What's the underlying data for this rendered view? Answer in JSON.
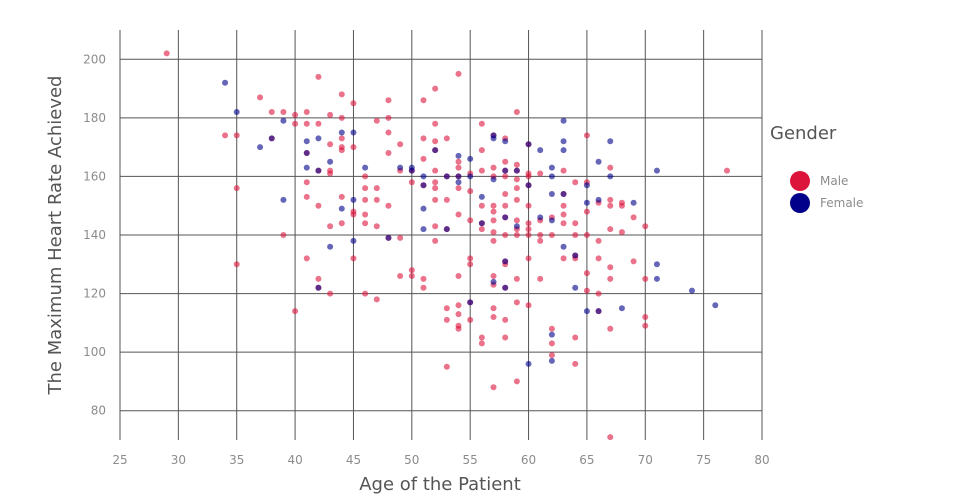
{
  "chart_data": {
    "type": "scatter",
    "xlabel": "Age of the Patient",
    "ylabel": "The Maximum Heart Rate Achieved",
    "xlim": [
      25,
      80
    ],
    "ylim": [
      70,
      210
    ],
    "x_ticks": [
      25,
      30,
      35,
      40,
      45,
      50,
      55,
      60,
      65,
      70,
      75,
      80
    ],
    "y_ticks": [
      80,
      100,
      120,
      140,
      160,
      180,
      200
    ],
    "grid": true,
    "legend": {
      "title": "Gender",
      "position": "right"
    },
    "series": [
      {
        "name": "Male",
        "color": "#DC143C",
        "points": [
          [
            29,
            202
          ],
          [
            34,
            174
          ],
          [
            35,
            174
          ],
          [
            35,
            156
          ],
          [
            35,
            130
          ],
          [
            37,
            187
          ],
          [
            38,
            182
          ],
          [
            38,
            173
          ],
          [
            39,
            182
          ],
          [
            39,
            140
          ],
          [
            40,
            181
          ],
          [
            40,
            178
          ],
          [
            40,
            114
          ],
          [
            41,
            182
          ],
          [
            41,
            178
          ],
          [
            41,
            168
          ],
          [
            41,
            158
          ],
          [
            41,
            153
          ],
          [
            41,
            132
          ],
          [
            42,
            194
          ],
          [
            42,
            178
          ],
          [
            42,
            162
          ],
          [
            42,
            150
          ],
          [
            42,
            125
          ],
          [
            42,
            122
          ],
          [
            43,
            181
          ],
          [
            43,
            171
          ],
          [
            43,
            162
          ],
          [
            43,
            161
          ],
          [
            43,
            143
          ],
          [
            43,
            120
          ],
          [
            44,
            188
          ],
          [
            44,
            180
          ],
          [
            44,
            173
          ],
          [
            44,
            170
          ],
          [
            44,
            169
          ],
          [
            44,
            153
          ],
          [
            44,
            144
          ],
          [
            45,
            185
          ],
          [
            45,
            170
          ],
          [
            45,
            148
          ],
          [
            45,
            147
          ],
          [
            45,
            132
          ],
          [
            46,
            160
          ],
          [
            46,
            156
          ],
          [
            46,
            152
          ],
          [
            46,
            147
          ],
          [
            46,
            144
          ],
          [
            46,
            120
          ],
          [
            47,
            179
          ],
          [
            47,
            156
          ],
          [
            47,
            152
          ],
          [
            47,
            143
          ],
          [
            47,
            118
          ],
          [
            48,
            186
          ],
          [
            48,
            180
          ],
          [
            48,
            175
          ],
          [
            48,
            168
          ],
          [
            48,
            150
          ],
          [
            48,
            139
          ],
          [
            49,
            171
          ],
          [
            49,
            162
          ],
          [
            49,
            139
          ],
          [
            49,
            126
          ],
          [
            50,
            162
          ],
          [
            50,
            158
          ],
          [
            50,
            128
          ],
          [
            50,
            126
          ],
          [
            51,
            186
          ],
          [
            51,
            173
          ],
          [
            51,
            166
          ],
          [
            51,
            157
          ],
          [
            51,
            125
          ],
          [
            51,
            122
          ],
          [
            52,
            190
          ],
          [
            52,
            178
          ],
          [
            52,
            172
          ],
          [
            52,
            169
          ],
          [
            52,
            162
          ],
          [
            52,
            158
          ],
          [
            52,
            156
          ],
          [
            52,
            152
          ],
          [
            52,
            143
          ],
          [
            52,
            138
          ],
          [
            53,
            173
          ],
          [
            53,
            160
          ],
          [
            53,
            152
          ],
          [
            53,
            142
          ],
          [
            53,
            115
          ],
          [
            53,
            111
          ],
          [
            53,
            95
          ],
          [
            54,
            195
          ],
          [
            54,
            165
          ],
          [
            54,
            163
          ],
          [
            54,
            160
          ],
          [
            54,
            156
          ],
          [
            54,
            147
          ],
          [
            54,
            126
          ],
          [
            54,
            116
          ],
          [
            54,
            113
          ],
          [
            54,
            109
          ],
          [
            54,
            108
          ],
          [
            55,
            161
          ],
          [
            55,
            155
          ],
          [
            55,
            145
          ],
          [
            55,
            132
          ],
          [
            55,
            130
          ],
          [
            55,
            117
          ],
          [
            55,
            111
          ],
          [
            56,
            178
          ],
          [
            56,
            169
          ],
          [
            56,
            162
          ],
          [
            56,
            150
          ],
          [
            56,
            144
          ],
          [
            56,
            142
          ],
          [
            56,
            105
          ],
          [
            56,
            103
          ],
          [
            57,
            174
          ],
          [
            57,
            163
          ],
          [
            57,
            160
          ],
          [
            57,
            150
          ],
          [
            57,
            148
          ],
          [
            57,
            145
          ],
          [
            57,
            141
          ],
          [
            57,
            138
          ],
          [
            57,
            126
          ],
          [
            57,
            123
          ],
          [
            57,
            115
          ],
          [
            57,
            112
          ],
          [
            57,
            88
          ],
          [
            58,
            173
          ],
          [
            58,
            165
          ],
          [
            58,
            162
          ],
          [
            58,
            160
          ],
          [
            58,
            154
          ],
          [
            58,
            150
          ],
          [
            58,
            146
          ],
          [
            58,
            140
          ],
          [
            58,
            131
          ],
          [
            58,
            130
          ],
          [
            58,
            122
          ],
          [
            58,
            111
          ],
          [
            58,
            105
          ],
          [
            59,
            182
          ],
          [
            59,
            164
          ],
          [
            59,
            162
          ],
          [
            59,
            159
          ],
          [
            59,
            156
          ],
          [
            59,
            152
          ],
          [
            59,
            145
          ],
          [
            59,
            142
          ],
          [
            59,
            140
          ],
          [
            59,
            125
          ],
          [
            59,
            117
          ],
          [
            59,
            90
          ],
          [
            60,
            171
          ],
          [
            60,
            161
          ],
          [
            60,
            160
          ],
          [
            60,
            157
          ],
          [
            60,
            150
          ],
          [
            60,
            144
          ],
          [
            60,
            142
          ],
          [
            60,
            140
          ],
          [
            60,
            132
          ],
          [
            60,
            116
          ],
          [
            61,
            161
          ],
          [
            61,
            145
          ],
          [
            61,
            140
          ],
          [
            61,
            138
          ],
          [
            61,
            125
          ],
          [
            62,
            146
          ],
          [
            62,
            140
          ],
          [
            62,
            108
          ],
          [
            62,
            103
          ],
          [
            62,
            99
          ],
          [
            63,
            162
          ],
          [
            63,
            154
          ],
          [
            63,
            150
          ],
          [
            63,
            147
          ],
          [
            63,
            144
          ],
          [
            63,
            132
          ],
          [
            64,
            158
          ],
          [
            64,
            144
          ],
          [
            64,
            140
          ],
          [
            64,
            133
          ],
          [
            64,
            132
          ],
          [
            64,
            105
          ],
          [
            64,
            96
          ],
          [
            65,
            174
          ],
          [
            65,
            158
          ],
          [
            65,
            148
          ],
          [
            65,
            140
          ],
          [
            65,
            127
          ],
          [
            65,
            121
          ],
          [
            66,
            151
          ],
          [
            66,
            138
          ],
          [
            66,
            132
          ],
          [
            66,
            120
          ],
          [
            66,
            114
          ],
          [
            67,
            163
          ],
          [
            67,
            152
          ],
          [
            67,
            150
          ],
          [
            67,
            142
          ],
          [
            67,
            129
          ],
          [
            67,
            125
          ],
          [
            67,
            108
          ],
          [
            67,
            71
          ],
          [
            68,
            151
          ],
          [
            68,
            150
          ],
          [
            68,
            141
          ],
          [
            69,
            146
          ],
          [
            69,
            131
          ],
          [
            70,
            143
          ],
          [
            70,
            125
          ],
          [
            70,
            112
          ],
          [
            70,
            109
          ],
          [
            77,
            162
          ]
        ]
      },
      {
        "name": "Female",
        "color": "#00008B",
        "points": [
          [
            34,
            192
          ],
          [
            35,
            182
          ],
          [
            37,
            170
          ],
          [
            38,
            173
          ],
          [
            39,
            179
          ],
          [
            39,
            152
          ],
          [
            41,
            172
          ],
          [
            41,
            168
          ],
          [
            41,
            163
          ],
          [
            42,
            173
          ],
          [
            42,
            162
          ],
          [
            42,
            122
          ],
          [
            43,
            165
          ],
          [
            43,
            136
          ],
          [
            44,
            175
          ],
          [
            44,
            149
          ],
          [
            45,
            175
          ],
          [
            45,
            152
          ],
          [
            45,
            138
          ],
          [
            46,
            163
          ],
          [
            48,
            139
          ],
          [
            49,
            163
          ],
          [
            50,
            163
          ],
          [
            50,
            162
          ],
          [
            51,
            160
          ],
          [
            51,
            157
          ],
          [
            51,
            149
          ],
          [
            51,
            142
          ],
          [
            52,
            169
          ],
          [
            53,
            160
          ],
          [
            53,
            142
          ],
          [
            54,
            167
          ],
          [
            54,
            160
          ],
          [
            54,
            158
          ],
          [
            55,
            166
          ],
          [
            55,
            160
          ],
          [
            55,
            117
          ],
          [
            56,
            153
          ],
          [
            56,
            144
          ],
          [
            57,
            174
          ],
          [
            57,
            173
          ],
          [
            57,
            159
          ],
          [
            57,
            124
          ],
          [
            58,
            172
          ],
          [
            58,
            162
          ],
          [
            58,
            146
          ],
          [
            58,
            131
          ],
          [
            58,
            122
          ],
          [
            59,
            162
          ],
          [
            59,
            143
          ],
          [
            60,
            171
          ],
          [
            60,
            157
          ],
          [
            60,
            96
          ],
          [
            61,
            169
          ],
          [
            61,
            146
          ],
          [
            62,
            163
          ],
          [
            62,
            160
          ],
          [
            62,
            154
          ],
          [
            62,
            145
          ],
          [
            62,
            106
          ],
          [
            62,
            97
          ],
          [
            63,
            179
          ],
          [
            63,
            172
          ],
          [
            63,
            169
          ],
          [
            63,
            154
          ],
          [
            63,
            136
          ],
          [
            64,
            133
          ],
          [
            64,
            122
          ],
          [
            65,
            157
          ],
          [
            65,
            151
          ],
          [
            65,
            114
          ],
          [
            66,
            165
          ],
          [
            66,
            152
          ],
          [
            66,
            114
          ],
          [
            67,
            172
          ],
          [
            67,
            160
          ],
          [
            68,
            115
          ],
          [
            69,
            151
          ],
          [
            71,
            162
          ],
          [
            71,
            130
          ],
          [
            71,
            125
          ],
          [
            74,
            121
          ],
          [
            76,
            116
          ]
        ]
      }
    ]
  }
}
